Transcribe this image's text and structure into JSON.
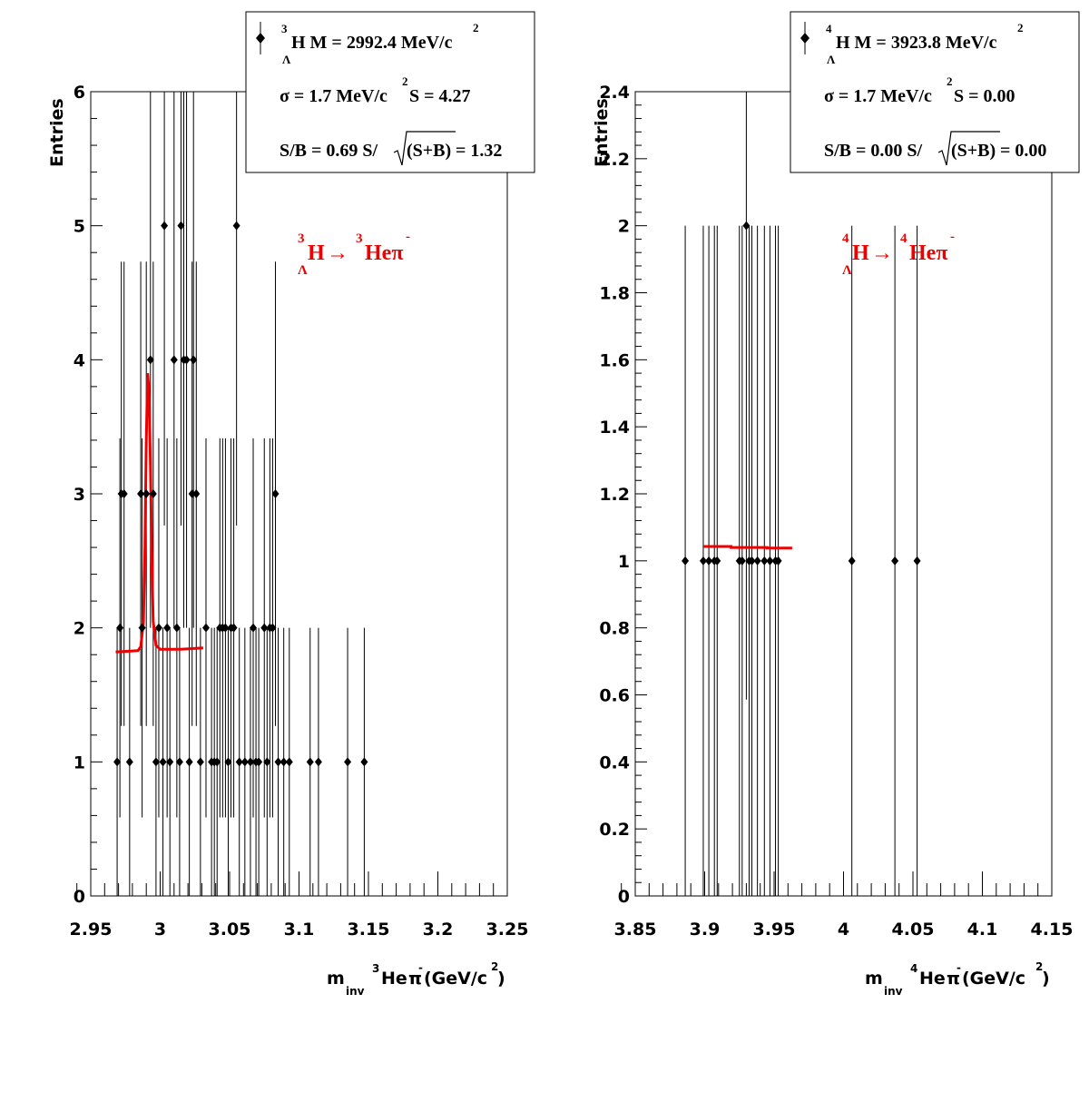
{
  "colors": {
    "points": "#000000",
    "fit": "#ee0000",
    "frame": "#000000"
  },
  "chart_data": [
    {
      "type": "scatter",
      "ylabel": "Entries",
      "xlabel": {
        "main": "m",
        "sub": "inv",
        "sup1": "3",
        "mid": "He",
        "pi": "π",
        "sup2": "-",
        "unit": "(GeV/c",
        "unit_sup": "2",
        "close": ")"
      },
      "xlim": [
        2.95,
        3.25
      ],
      "ylim": [
        0,
        6
      ],
      "xticks": [
        "2.95",
        "3",
        "3.05",
        "3.1",
        "3.15",
        "3.2",
        "3.25"
      ],
      "yticks": [
        "0",
        "1",
        "2",
        "3",
        "4",
        "5",
        "6"
      ],
      "stats": {
        "line1": {
          "sup": "3",
          "sub": "Λ",
          "text": "H M = 2992.4 MeV/c",
          "sup2": "2"
        },
        "line2": {
          "text": "σ = 1.7 MeV/c",
          "sup": "2",
          "text2": " S = 4.27"
        },
        "line3": {
          "a": "S/B = 0.69  S/",
          "b": "(S+B)",
          "c": " = 1.32"
        }
      },
      "reaction": {
        "sup1": "3",
        "sub1": "Λ",
        "h": "H",
        "arrow": "→",
        "sup2": "3",
        "he": "Heπ",
        "sup3": "-"
      },
      "points": [
        {
          "x": 2.969,
          "y": 1
        },
        {
          "x": 2.971,
          "y": 2
        },
        {
          "x": 2.972,
          "y": 3
        },
        {
          "x": 2.974,
          "y": 3
        },
        {
          "x": 2.978,
          "y": 1
        },
        {
          "x": 2.986,
          "y": 3
        },
        {
          "x": 2.987,
          "y": 2
        },
        {
          "x": 2.99,
          "y": 3
        },
        {
          "x": 2.993,
          "y": 4
        },
        {
          "x": 2.995,
          "y": 3
        },
        {
          "x": 2.997,
          "y": 1
        },
        {
          "x": 2.999,
          "y": 2
        },
        {
          "x": 3.002,
          "y": 1
        },
        {
          "x": 3.003,
          "y": 5
        },
        {
          "x": 3.005,
          "y": 2
        },
        {
          "x": 3.007,
          "y": 1
        },
        {
          "x": 3.01,
          "y": 4
        },
        {
          "x": 3.012,
          "y": 2
        },
        {
          "x": 3.014,
          "y": 1
        },
        {
          "x": 3.015,
          "y": 5
        },
        {
          "x": 3.017,
          "y": 4
        },
        {
          "x": 3.019,
          "y": 4
        },
        {
          "x": 3.021,
          "y": 1
        },
        {
          "x": 3.023,
          "y": 3
        },
        {
          "x": 3.024,
          "y": 4
        },
        {
          "x": 3.026,
          "y": 3
        },
        {
          "x": 3.029,
          "y": 1
        },
        {
          "x": 3.033,
          "y": 2
        },
        {
          "x": 3.037,
          "y": 1
        },
        {
          "x": 3.039,
          "y": 1
        },
        {
          "x": 3.041,
          "y": 1
        },
        {
          "x": 3.043,
          "y": 2
        },
        {
          "x": 3.045,
          "y": 2
        },
        {
          "x": 3.047,
          "y": 2
        },
        {
          "x": 3.049,
          "y": 1
        },
        {
          "x": 3.051,
          "y": 2
        },
        {
          "x": 3.053,
          "y": 2
        },
        {
          "x": 3.055,
          "y": 5
        },
        {
          "x": 3.057,
          "y": 1
        },
        {
          "x": 3.061,
          "y": 1
        },
        {
          "x": 3.065,
          "y": 1
        },
        {
          "x": 3.067,
          "y": 2
        },
        {
          "x": 3.069,
          "y": 1
        },
        {
          "x": 3.071,
          "y": 1
        },
        {
          "x": 3.075,
          "y": 2
        },
        {
          "x": 3.077,
          "y": 1
        },
        {
          "x": 3.079,
          "y": 2
        },
        {
          "x": 3.081,
          "y": 2
        },
        {
          "x": 3.083,
          "y": 3
        },
        {
          "x": 3.085,
          "y": 1
        },
        {
          "x": 3.089,
          "y": 1
        },
        {
          "x": 3.093,
          "y": 1
        },
        {
          "x": 3.108,
          "y": 1
        },
        {
          "x": 3.114,
          "y": 1
        },
        {
          "x": 3.135,
          "y": 1
        },
        {
          "x": 3.147,
          "y": 1
        }
      ],
      "fit": [
        [
          2.968,
          1.82
        ],
        [
          2.984,
          1.83
        ],
        [
          2.986,
          1.86
        ],
        [
          2.988,
          2.05
        ],
        [
          2.989,
          2.6
        ],
        [
          2.99,
          3.4
        ],
        [
          2.991,
          3.9
        ],
        [
          2.992,
          3.75
        ],
        [
          2.993,
          3.2
        ],
        [
          2.994,
          2.5
        ],
        [
          2.995,
          2.05
        ],
        [
          2.997,
          1.87
        ],
        [
          3.0,
          1.84
        ],
        [
          3.015,
          1.84
        ],
        [
          3.031,
          1.85
        ]
      ]
    },
    {
      "type": "scatter",
      "ylabel": "Entries",
      "xlabel": {
        "main": "m",
        "sub": "inv",
        "sup1": "4",
        "mid": "He",
        "pi": "π",
        "sup2": "-",
        "unit": " (GeV/c",
        "unit_sup": "2",
        "close": ")"
      },
      "xlim": [
        3.85,
        4.15
      ],
      "ylim": [
        0,
        2.4
      ],
      "xticks": [
        "3.85",
        "3.9",
        "3.95",
        "4",
        "4.05",
        "4.1",
        "4.15"
      ],
      "yticks": [
        "0",
        "0.2",
        "0.4",
        "0.6",
        "0.8",
        "1",
        "1.2",
        "1.4",
        "1.6",
        "1.8",
        "2",
        "2.2",
        "2.4"
      ],
      "stats": {
        "line1": {
          "sup": "4",
          "sub": "Λ",
          "text": "H M = 3923.8 MeV/c",
          "sup2": "2"
        },
        "line2": {
          "text": "σ = 1.7 MeV/c",
          "sup": "2",
          "text2": " S = 0.00"
        },
        "line3": {
          "a": "S/B = 0.00  S/",
          "b": "(S+B)",
          "c": " = 0.00"
        }
      },
      "reaction": {
        "sup1": "4",
        "sub1": "Λ",
        "h": "H",
        "arrow": "→",
        "sup2": "4",
        "he": "Heπ",
        "sup3": "-"
      },
      "points": [
        {
          "x": 3.886,
          "y": 1
        },
        {
          "x": 3.899,
          "y": 1
        },
        {
          "x": 3.903,
          "y": 1
        },
        {
          "x": 3.907,
          "y": 1
        },
        {
          "x": 3.909,
          "y": 1
        },
        {
          "x": 3.925,
          "y": 1
        },
        {
          "x": 3.927,
          "y": 1
        },
        {
          "x": 3.93,
          "y": 2
        },
        {
          "x": 3.932,
          "y": 1
        },
        {
          "x": 3.934,
          "y": 1
        },
        {
          "x": 3.938,
          "y": 1
        },
        {
          "x": 3.943,
          "y": 1
        },
        {
          "x": 3.947,
          "y": 1
        },
        {
          "x": 3.951,
          "y": 1
        },
        {
          "x": 3.953,
          "y": 1
        },
        {
          "x": 4.006,
          "y": 1
        },
        {
          "x": 4.037,
          "y": 1
        },
        {
          "x": 4.053,
          "y": 1
        }
      ],
      "fit": [
        [
          3.899,
          1.043
        ],
        [
          3.919,
          1.043
        ],
        [
          3.919,
          1.04
        ],
        [
          3.945,
          1.04
        ],
        [
          3.945,
          1.038
        ],
        [
          3.963,
          1.038
        ]
      ]
    }
  ]
}
